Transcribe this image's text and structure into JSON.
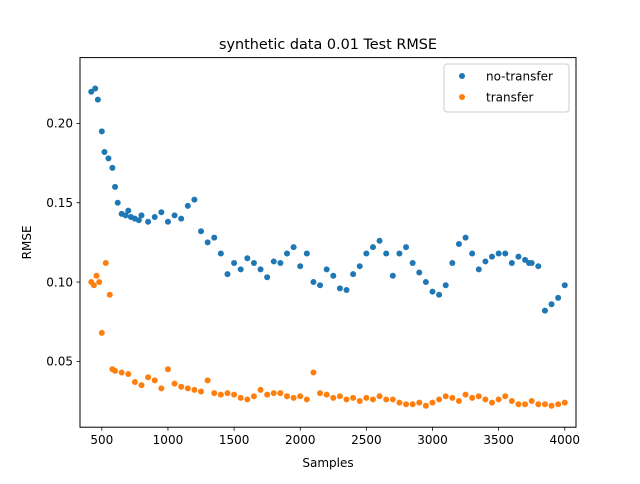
{
  "chart_data": {
    "type": "scatter",
    "title": "synthetic data 0.01 Test RMSE",
    "xlabel": "Samples",
    "ylabel": "RMSE",
    "xlim": [
      335,
      4085
    ],
    "ylim": [
      0.0085,
      0.2415
    ],
    "x_ticks": [
      500,
      1000,
      1500,
      2000,
      2500,
      3000,
      3500,
      4000
    ],
    "x_tick_labels": [
      "500",
      "1000",
      "1500",
      "2000",
      "2500",
      "3000",
      "3500",
      "4000"
    ],
    "y_ticks": [
      0.05,
      0.1,
      0.15,
      0.2
    ],
    "y_tick_labels": [
      "0.05",
      "0.10",
      "0.15",
      "0.20"
    ],
    "grid": false,
    "legend_position": "top-right",
    "colors": {
      "no-transfer": "#1f77b4",
      "transfer": "#ff7f0e"
    },
    "series": [
      {
        "name": "no-transfer",
        "color": "#1f77b4",
        "x": [
          420,
          450,
          470,
          500,
          520,
          550,
          580,
          600,
          620,
          650,
          680,
          700,
          720,
          750,
          780,
          800,
          850,
          900,
          950,
          1000,
          1050,
          1100,
          1150,
          1200,
          1250,
          1300,
          1350,
          1400,
          1450,
          1500,
          1550,
          1600,
          1650,
          1700,
          1750,
          1800,
          1850,
          1900,
          1950,
          2000,
          2050,
          2100,
          2150,
          2200,
          2250,
          2300,
          2350,
          2400,
          2450,
          2500,
          2550,
          2600,
          2650,
          2700,
          2750,
          2800,
          2850,
          2900,
          2950,
          3000,
          3050,
          3100,
          3150,
          3200,
          3250,
          3300,
          3350,
          3400,
          3450,
          3500,
          3550,
          3600,
          3650,
          3700,
          3730,
          3750,
          3800,
          3850,
          3900,
          3950,
          4000
        ],
        "y": [
          0.22,
          0.222,
          0.215,
          0.195,
          0.182,
          0.178,
          0.172,
          0.16,
          0.15,
          0.143,
          0.142,
          0.145,
          0.141,
          0.14,
          0.139,
          0.142,
          0.138,
          0.141,
          0.144,
          0.138,
          0.142,
          0.14,
          0.148,
          0.152,
          0.132,
          0.125,
          0.128,
          0.118,
          0.105,
          0.112,
          0.108,
          0.115,
          0.112,
          0.108,
          0.103,
          0.113,
          0.112,
          0.118,
          0.122,
          0.11,
          0.118,
          0.1,
          0.098,
          0.108,
          0.104,
          0.096,
          0.095,
          0.105,
          0.11,
          0.118,
          0.122,
          0.126,
          0.118,
          0.104,
          0.118,
          0.122,
          0.112,
          0.106,
          0.1,
          0.094,
          0.092,
          0.098,
          0.112,
          0.124,
          0.128,
          0.118,
          0.108,
          0.113,
          0.116,
          0.118,
          0.118,
          0.112,
          0.116,
          0.114,
          0.112,
          0.112,
          0.11,
          0.082,
          0.086,
          0.09,
          0.098
        ]
      },
      {
        "name": "transfer",
        "color": "#ff7f0e",
        "x": [
          420,
          440,
          460,
          480,
          500,
          530,
          560,
          580,
          600,
          650,
          700,
          750,
          800,
          850,
          900,
          950,
          1000,
          1050,
          1100,
          1150,
          1200,
          1250,
          1300,
          1350,
          1400,
          1450,
          1500,
          1550,
          1600,
          1650,
          1700,
          1750,
          1800,
          1850,
          1900,
          1950,
          2000,
          2050,
          2100,
          2150,
          2200,
          2250,
          2300,
          2350,
          2400,
          2450,
          2500,
          2550,
          2600,
          2650,
          2700,
          2750,
          2800,
          2850,
          2900,
          2950,
          3000,
          3050,
          3100,
          3150,
          3200,
          3250,
          3300,
          3350,
          3400,
          3450,
          3500,
          3550,
          3600,
          3650,
          3700,
          3750,
          3800,
          3850,
          3900,
          3950,
          4000
        ],
        "y": [
          0.1,
          0.098,
          0.104,
          0.1,
          0.068,
          0.112,
          0.092,
          0.045,
          0.044,
          0.043,
          0.042,
          0.037,
          0.035,
          0.04,
          0.038,
          0.033,
          0.045,
          0.036,
          0.034,
          0.033,
          0.032,
          0.031,
          0.038,
          0.03,
          0.029,
          0.03,
          0.029,
          0.027,
          0.026,
          0.028,
          0.032,
          0.029,
          0.03,
          0.03,
          0.028,
          0.027,
          0.028,
          0.026,
          0.043,
          0.03,
          0.029,
          0.027,
          0.028,
          0.026,
          0.027,
          0.025,
          0.027,
          0.026,
          0.028,
          0.026,
          0.026,
          0.024,
          0.023,
          0.023,
          0.024,
          0.022,
          0.024,
          0.026,
          0.028,
          0.027,
          0.025,
          0.029,
          0.027,
          0.028,
          0.026,
          0.024,
          0.026,
          0.028,
          0.025,
          0.023,
          0.023,
          0.025,
          0.023,
          0.023,
          0.022,
          0.023,
          0.024
        ]
      }
    ]
  }
}
